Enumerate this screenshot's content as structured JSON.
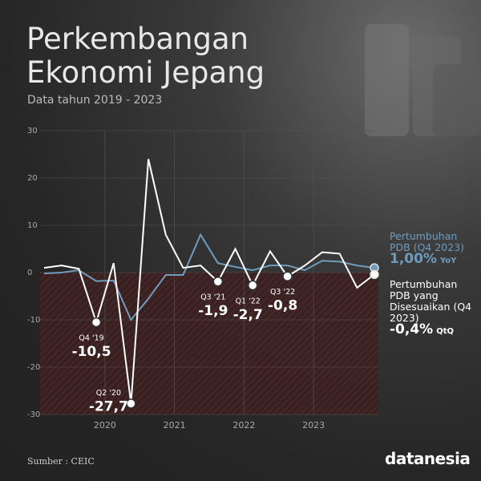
{
  "chart_data": {
    "type": "line",
    "title": "Perkembangan Ekonomi Jepang",
    "subtitle": "Data tahun 2019 - 2023",
    "source": "Sumber : CEIC",
    "brand": "datanesia",
    "x": [
      2019.125,
      2019.375,
      2019.625,
      2019.875,
      2020.125,
      2020.375,
      2020.625,
      2020.875,
      2021.125,
      2021.375,
      2021.625,
      2021.875,
      2022.125,
      2022.375,
      2022.625,
      2022.875,
      2023.125,
      2023.375,
      2023.625,
      2023.875
    ],
    "xlim": [
      2019.125,
      2023.875
    ],
    "xticks": [
      2020,
      2021,
      2022,
      2023
    ],
    "ylim": [
      -30,
      30
    ],
    "yticks": [
      -30,
      -20,
      -10,
      0,
      10,
      20,
      30
    ],
    "grid": true,
    "series": [
      {
        "name": "Pertumbuhan PDB (Q4 2023)",
        "color": "#6f9bbd",
        "values": [
          -0.2,
          0,
          0.5,
          -1.8,
          -1.7,
          -10,
          -5.5,
          -0.5,
          -0.5,
          8,
          2,
          1.2,
          0.5,
          1.5,
          1.5,
          0.5,
          2.5,
          2.3,
          1.5,
          1.0
        ],
        "latest_label": "1,00%",
        "latest_unit": "YoY"
      },
      {
        "name": "Pertumbuhan PDB yang Disesuaikan (Q4 2023)",
        "color": "#ffffff",
        "values": [
          1,
          1.5,
          0.8,
          -10.5,
          2,
          -27.7,
          24,
          8,
          1,
          1.5,
          -1.9,
          5,
          -2.7,
          4.5,
          -0.8,
          1.5,
          4.3,
          4,
          -3.2,
          -0.4
        ],
        "value_labels": [
          null,
          null,
          null,
          "-10,5",
          null,
          "-27,7",
          null,
          null,
          null,
          null,
          "-1,9",
          null,
          "-2,7",
          null,
          "-0,8",
          null,
          null,
          null,
          null,
          null
        ],
        "point_labels": [
          null,
          null,
          null,
          "Q4 '19",
          null,
          "Q2 '20",
          null,
          null,
          null,
          null,
          "Q3 '21",
          null,
          "Q1 '22",
          null,
          "Q3 '22",
          null,
          null,
          null,
          null,
          null
        ],
        "latest_label": "-0,4%",
        "latest_unit": "QtQ"
      }
    ]
  }
}
